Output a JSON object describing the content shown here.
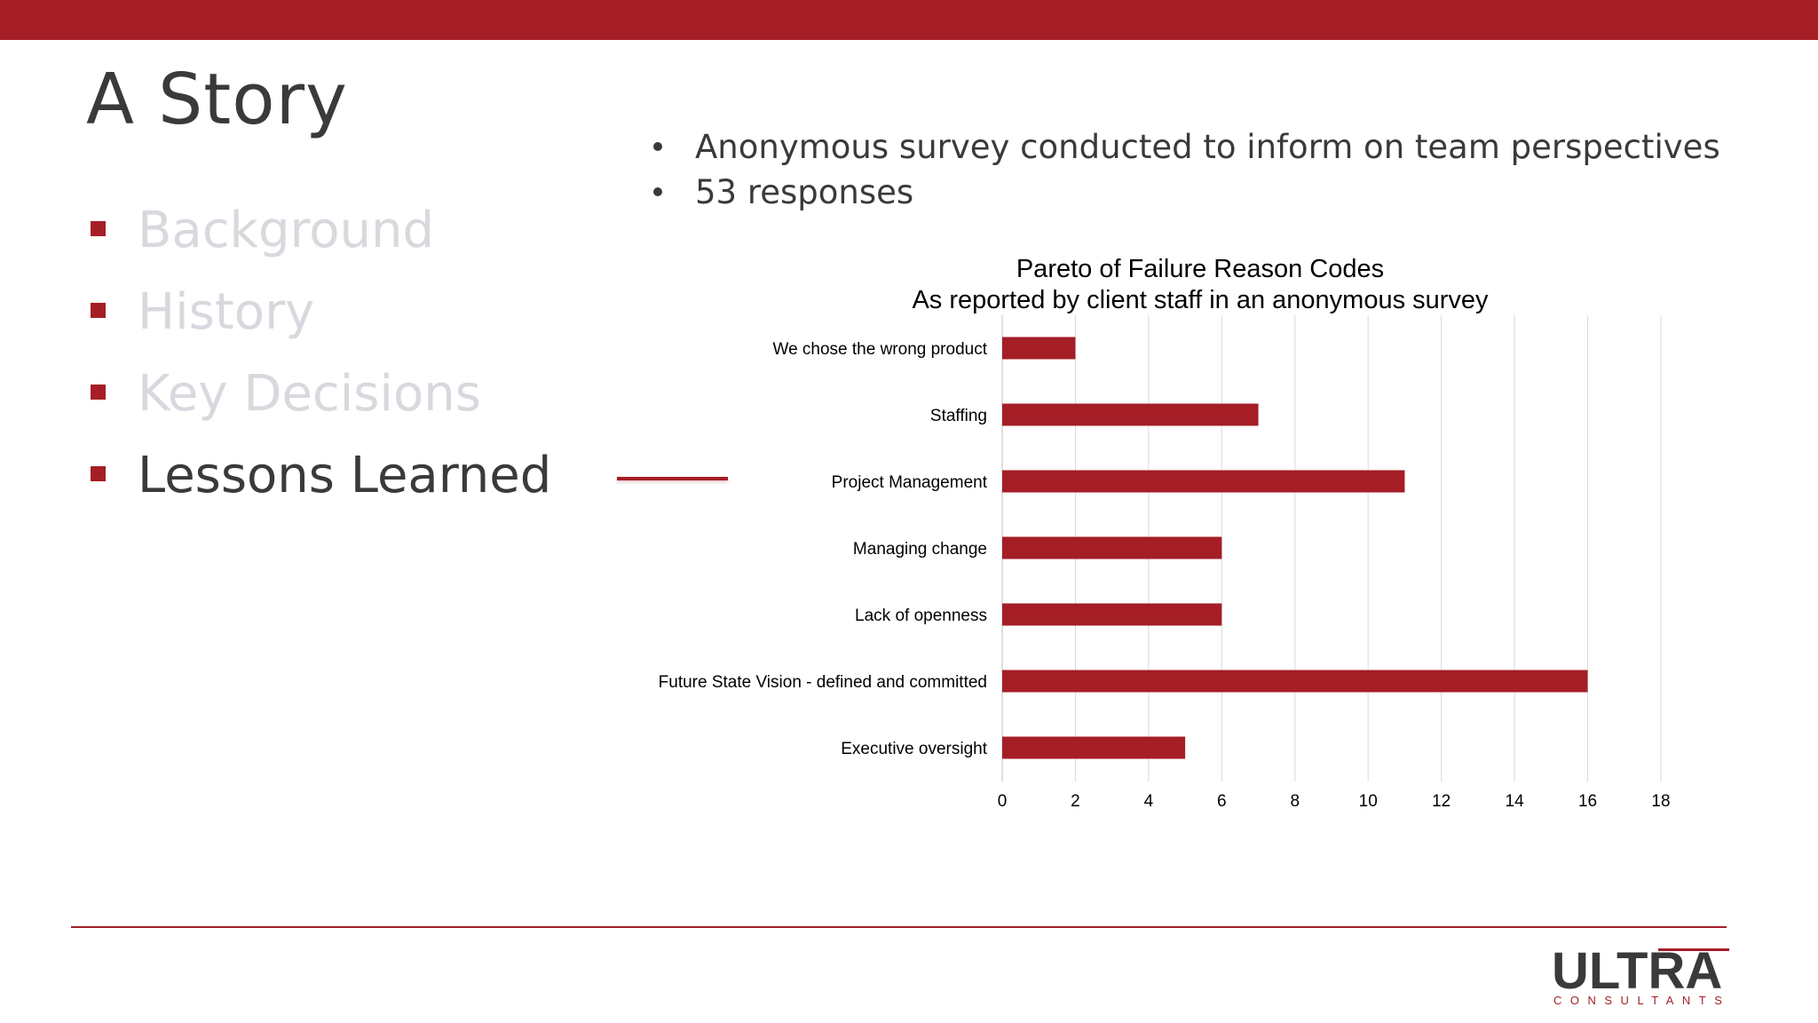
{
  "slide": {
    "title": "A Story",
    "nav": [
      {
        "label": "Background",
        "active": false
      },
      {
        "label": "History",
        "active": false
      },
      {
        "label": "Key Decisions",
        "active": false
      },
      {
        "label": "Lessons Learned",
        "active": true
      }
    ],
    "bullets": [
      "Anonymous survey conducted to inform on team perspectives",
      "53 responses"
    ],
    "logo": {
      "main": "ULTRA",
      "sub": "CONSULTANTS"
    }
  },
  "colors": {
    "accent": "#a51e26",
    "text": "#3a3a3a",
    "inactive": "#d8d8de",
    "grid": "#d9d9d9"
  },
  "chart_data": {
    "type": "bar",
    "orientation": "horizontal",
    "title": "Pareto of Failure Reason Codes",
    "subtitle": "As reported by client staff in an anonymous survey",
    "categories": [
      "We chose the wrong product",
      "Staffing",
      "Project Management",
      "Managing change",
      "Lack of openness",
      "Future State Vision - defined and committed",
      "Executive oversight"
    ],
    "values": [
      2,
      7,
      11,
      6,
      6,
      16,
      5
    ],
    "xlim": [
      0,
      18
    ],
    "xticks": [
      "0",
      "2",
      "4",
      "6",
      "8",
      "10",
      "12",
      "14",
      "16",
      "18"
    ],
    "grid": true,
    "legend": "none"
  }
}
